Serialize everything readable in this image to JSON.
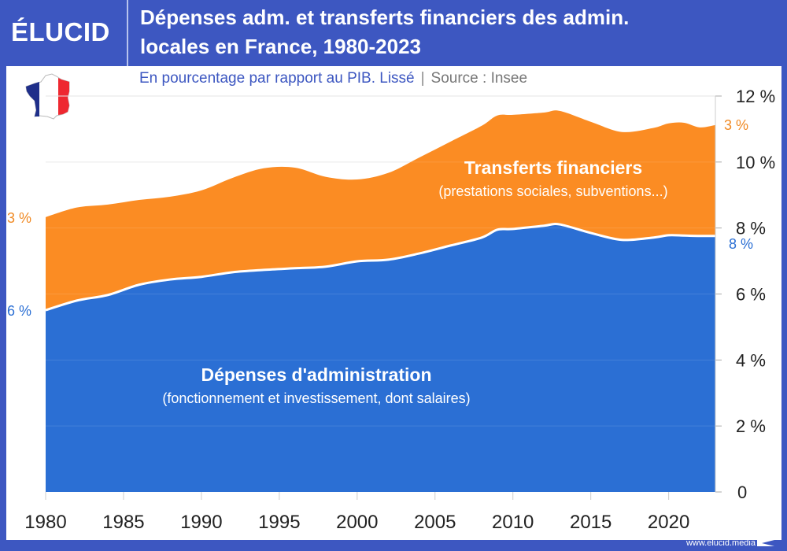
{
  "header": {
    "logo": "ÉLUCID",
    "title_line1": "Dépenses adm. et transferts financiers des admin.",
    "title_line2": "locales en France, 1980-2023",
    "subtitle": "En pourcentage par rapport au PIB. Lissé",
    "separator": "|",
    "source": "Source : Insee"
  },
  "footer": {
    "url": "www.elucid.media"
  },
  "colors": {
    "brand": "#3d57c1",
    "admin": "#2b6fd4",
    "transfers": "#fb8c23",
    "orange_label": "#f08a24",
    "blue_label": "#2b6fd4"
  },
  "chart_data": {
    "type": "area",
    "stacked": true,
    "x": [
      1980,
      1982,
      1984,
      1986,
      1988,
      1990,
      1992,
      1994,
      1996,
      1998,
      2000,
      2002,
      2004,
      2006,
      2008,
      2009,
      2010,
      2012,
      2013,
      2015,
      2017,
      2019,
      2020,
      2021,
      2022,
      2023
    ],
    "series": [
      {
        "name": "Dépenses d'administration",
        "note": "(fonctionnement et investissement, dont salaires)",
        "color": "#2b6fd4",
        "values": [
          5.51,
          5.8,
          5.97,
          6.28,
          6.44,
          6.52,
          6.66,
          6.73,
          6.78,
          6.83,
          6.99,
          7.04,
          7.23,
          7.47,
          7.71,
          7.95,
          7.97,
          8.07,
          8.11,
          7.85,
          7.64,
          7.71,
          7.78,
          7.77,
          7.76,
          7.76
        ]
      },
      {
        "name": "Transferts financiers",
        "note": "(prestations sociales, subventions...)",
        "color": "#fb8c23",
        "values": [
          2.82,
          2.82,
          2.74,
          2.57,
          2.51,
          2.62,
          2.86,
          3.08,
          3.05,
          2.72,
          2.48,
          2.63,
          2.91,
          3.15,
          3.39,
          3.46,
          3.46,
          3.43,
          3.44,
          3.37,
          3.27,
          3.32,
          3.39,
          3.42,
          3.29,
          3.36
        ]
      }
    ],
    "start_labels": {
      "transfers": "3 %",
      "admin": "6 %"
    },
    "end_labels": {
      "transfers": "3 %",
      "admin": "8 %"
    },
    "yaxis": {
      "ticks": [
        0,
        2,
        4,
        6,
        8,
        10,
        12
      ],
      "tick_labels": [
        "0",
        "2 %",
        "4 %",
        "6 %",
        "8 %",
        "10 %",
        "12 %"
      ],
      "position": "right",
      "ylim": [
        0,
        12
      ]
    },
    "xaxis": {
      "ticks": [
        1980,
        1985,
        1990,
        1995,
        2000,
        2005,
        2010,
        2015,
        2020
      ],
      "tick_labels": [
        "1980",
        "1985",
        "1990",
        "1995",
        "2000",
        "2005",
        "2010",
        "2015",
        "2020"
      ],
      "xlim": [
        1980,
        2023
      ]
    },
    "grid": true
  }
}
